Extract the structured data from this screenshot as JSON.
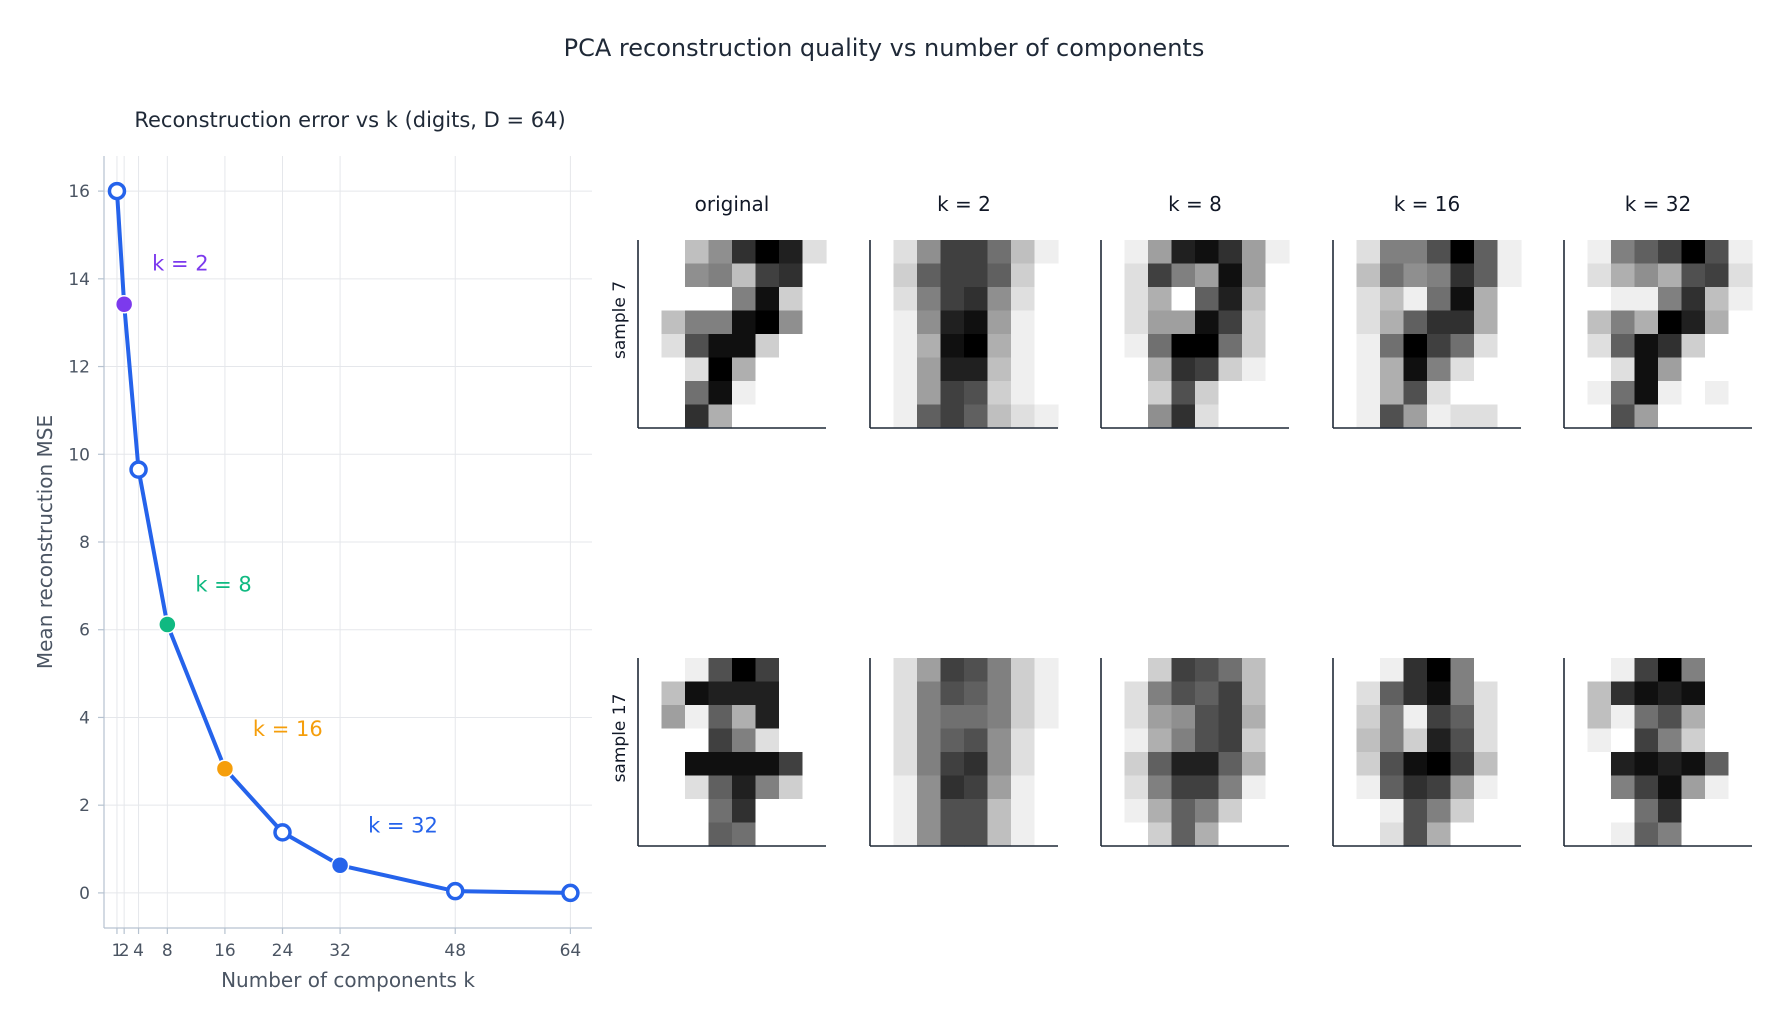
{
  "figure": {
    "title": "PCA reconstruction quality vs number of components"
  },
  "chart_data": [
    {
      "type": "line",
      "title": "Reconstruction error vs k (digits, D = 64)",
      "xlabel": "Number of components k",
      "ylabel": "Mean reconstruction MSE",
      "x": [
        1,
        2,
        4,
        8,
        16,
        24,
        32,
        48,
        64
      ],
      "y": [
        16.0,
        13.42,
        9.65,
        6.12,
        2.83,
        1.38,
        0.63,
        0.04,
        0.0
      ],
      "xticks": [
        "1",
        "2",
        "4",
        "8",
        "16",
        "24",
        "32",
        "48",
        "64"
      ],
      "yticks": [
        "0",
        "2",
        "4",
        "6",
        "8",
        "10",
        "12",
        "14",
        "16"
      ],
      "xlim": [
        -0.8,
        67
      ],
      "ylim": [
        -0.8,
        16.8
      ],
      "grid": true,
      "series_color": "#2563eb",
      "highlights": [
        {
          "k": 2,
          "label": "k = 2",
          "color": "#7c3aed"
        },
        {
          "k": 8,
          "label": "k = 8",
          "color": "#10b981"
        },
        {
          "k": 16,
          "label": "k = 16",
          "color": "#f59e0b"
        },
        {
          "k": 32,
          "label": "k = 32",
          "color": "#2563eb"
        }
      ]
    },
    {
      "type": "heatmap",
      "description_columns": [
        "original",
        "k = 2",
        "k = 8",
        "k = 16",
        "k = 32"
      ],
      "rows": [
        {
          "label": "sample 7",
          "images": [
            [
              [
                0,
                0,
                4,
                7,
                13,
                16,
                14,
                2
              ],
              [
                0,
                0,
                7,
                8,
                4,
                12,
                13,
                0
              ],
              [
                0,
                0,
                0,
                0,
                8,
                15,
                3,
                0
              ],
              [
                0,
                4,
                8,
                8,
                15,
                16,
                7,
                0
              ],
              [
                0,
                2,
                11,
                15,
                15,
                3,
                0,
                0
              ],
              [
                0,
                0,
                2,
                16,
                5,
                0,
                0,
                0
              ],
              [
                0,
                0,
                9,
                15,
                1,
                0,
                0,
                0
              ],
              [
                0,
                0,
                13,
                5,
                0,
                0,
                0,
                0
              ]
            ],
            [
              [
                0,
                2,
                7,
                12,
                12,
                9,
                4,
                1
              ],
              [
                0,
                3,
                10,
                12,
                12,
                10,
                3,
                0
              ],
              [
                0,
                2,
                8,
                12,
                13,
                7,
                2,
                0
              ],
              [
                0,
                1,
                7,
                14,
                15,
                6,
                1,
                0
              ],
              [
                0,
                1,
                5,
                15,
                16,
                5,
                1,
                0
              ],
              [
                0,
                1,
                6,
                14,
                14,
                4,
                1,
                0
              ],
              [
                0,
                1,
                6,
                12,
                11,
                3,
                1,
                0
              ],
              [
                0,
                1,
                10,
                12,
                10,
                4,
                2,
                1
              ]
            ],
            [
              [
                0,
                1,
                6,
                14,
                15,
                13,
                6,
                1
              ],
              [
                0,
                2,
                12,
                8,
                6,
                15,
                6,
                0
              ],
              [
                0,
                2,
                5,
                0,
                10,
                14,
                4,
                0
              ],
              [
                0,
                2,
                6,
                6,
                15,
                12,
                3,
                0
              ],
              [
                0,
                1,
                9,
                16,
                16,
                9,
                3,
                0
              ],
              [
                0,
                0,
                5,
                13,
                12,
                3,
                1,
                0
              ],
              [
                0,
                0,
                3,
                11,
                3,
                0,
                0,
                0
              ],
              [
                0,
                0,
                7,
                13,
                2,
                0,
                0,
                0
              ]
            ],
            [
              [
                0,
                2,
                8,
                8,
                11,
                16,
                10,
                1
              ],
              [
                0,
                4,
                9,
                7,
                8,
                13,
                10,
                1
              ],
              [
                0,
                2,
                4,
                1,
                9,
                15,
                5,
                0
              ],
              [
                0,
                2,
                5,
                10,
                13,
                13,
                5,
                0
              ],
              [
                0,
                1,
                9,
                16,
                12,
                9,
                2,
                0
              ],
              [
                0,
                1,
                5,
                15,
                8,
                2,
                0,
                0
              ],
              [
                0,
                1,
                5,
                11,
                2,
                0,
                0,
                0
              ],
              [
                0,
                1,
                11,
                6,
                1,
                2,
                2,
                0
              ]
            ],
            [
              [
                0,
                1,
                8,
                10,
                12,
                16,
                11,
                1
              ],
              [
                0,
                2,
                5,
                7,
                5,
                11,
                12,
                2
              ],
              [
                0,
                0,
                1,
                1,
                8,
                13,
                4,
                1
              ],
              [
                0,
                4,
                8,
                5,
                16,
                14,
                5,
                0
              ],
              [
                0,
                2,
                10,
                15,
                13,
                3,
                0,
                0
              ],
              [
                0,
                0,
                2,
                15,
                6,
                0,
                0,
                0
              ],
              [
                0,
                1,
                9,
                15,
                1,
                0,
                1,
                0
              ],
              [
                0,
                0,
                11,
                6,
                0,
                0,
                0,
                0
              ]
            ]
          ]
        },
        {
          "label": "sample 17",
          "images": [
            [
              [
                0,
                0,
                1,
                11,
                16,
                12,
                0,
                0
              ],
              [
                0,
                4,
                15,
                14,
                14,
                14,
                0,
                0
              ],
              [
                0,
                6,
                1,
                10,
                5,
                14,
                0,
                0
              ],
              [
                0,
                0,
                0,
                12,
                8,
                2,
                0,
                0
              ],
              [
                0,
                0,
                15,
                15,
                15,
                15,
                12,
                0
              ],
              [
                0,
                0,
                2,
                10,
                14,
                8,
                3,
                0
              ],
              [
                0,
                0,
                0,
                9,
                13,
                0,
                0,
                0
              ],
              [
                0,
                0,
                0,
                10,
                9,
                0,
                0,
                0
              ]
            ],
            [
              [
                0,
                2,
                6,
                12,
                11,
                8,
                3,
                1
              ],
              [
                0,
                2,
                8,
                11,
                10,
                8,
                3,
                1
              ],
              [
                0,
                2,
                8,
                9,
                9,
                8,
                3,
                1
              ],
              [
                0,
                2,
                8,
                10,
                11,
                7,
                2,
                0
              ],
              [
                0,
                2,
                8,
                12,
                13,
                7,
                2,
                0
              ],
              [
                0,
                1,
                7,
                13,
                12,
                6,
                1,
                0
              ],
              [
                0,
                1,
                7,
                11,
                11,
                4,
                1,
                0
              ],
              [
                0,
                1,
                7,
                11,
                11,
                4,
                1,
                0
              ]
            ],
            [
              [
                0,
                0,
                3,
                12,
                11,
                9,
                4,
                0
              ],
              [
                0,
                2,
                8,
                11,
                10,
                12,
                4,
                0
              ],
              [
                0,
                2,
                6,
                7,
                11,
                12,
                5,
                0
              ],
              [
                0,
                1,
                5,
                8,
                11,
                12,
                3,
                0
              ],
              [
                0,
                3,
                10,
                14,
                14,
                10,
                5,
                0
              ],
              [
                0,
                2,
                8,
                12,
                12,
                8,
                1,
                0
              ],
              [
                0,
                1,
                5,
                10,
                8,
                3,
                0,
                0
              ],
              [
                0,
                0,
                3,
                10,
                5,
                0,
                0,
                0
              ]
            ],
            [
              [
                0,
                0,
                1,
                13,
                16,
                8,
                0,
                0
              ],
              [
                0,
                2,
                10,
                13,
                15,
                8,
                2,
                0
              ],
              [
                0,
                3,
                8,
                1,
                12,
                10,
                2,
                0
              ],
              [
                0,
                4,
                8,
                3,
                14,
                11,
                2,
                0
              ],
              [
                0,
                3,
                11,
                15,
                16,
                12,
                4,
                0
              ],
              [
                0,
                1,
                10,
                13,
                12,
                6,
                1,
                0
              ],
              [
                0,
                0,
                1,
                11,
                8,
                3,
                0,
                0
              ],
              [
                0,
                0,
                2,
                11,
                5,
                0,
                0,
                0
              ]
            ],
            [
              [
                0,
                0,
                1,
                12,
                16,
                8,
                0,
                0
              ],
              [
                0,
                4,
                13,
                15,
                14,
                15,
                0,
                0
              ],
              [
                0,
                4,
                1,
                9,
                11,
                5,
                0,
                0
              ],
              [
                0,
                1,
                0,
                12,
                8,
                3,
                0,
                0
              ],
              [
                0,
                0,
                14,
                15,
                14,
                15,
                10,
                0
              ],
              [
                0,
                0,
                8,
                12,
                15,
                6,
                1,
                0
              ],
              [
                0,
                0,
                0,
                9,
                13,
                0,
                0,
                0
              ],
              [
                0,
                0,
                1,
                10,
                8,
                0,
                0,
                0
              ]
            ]
          ]
        }
      ]
    }
  ]
}
